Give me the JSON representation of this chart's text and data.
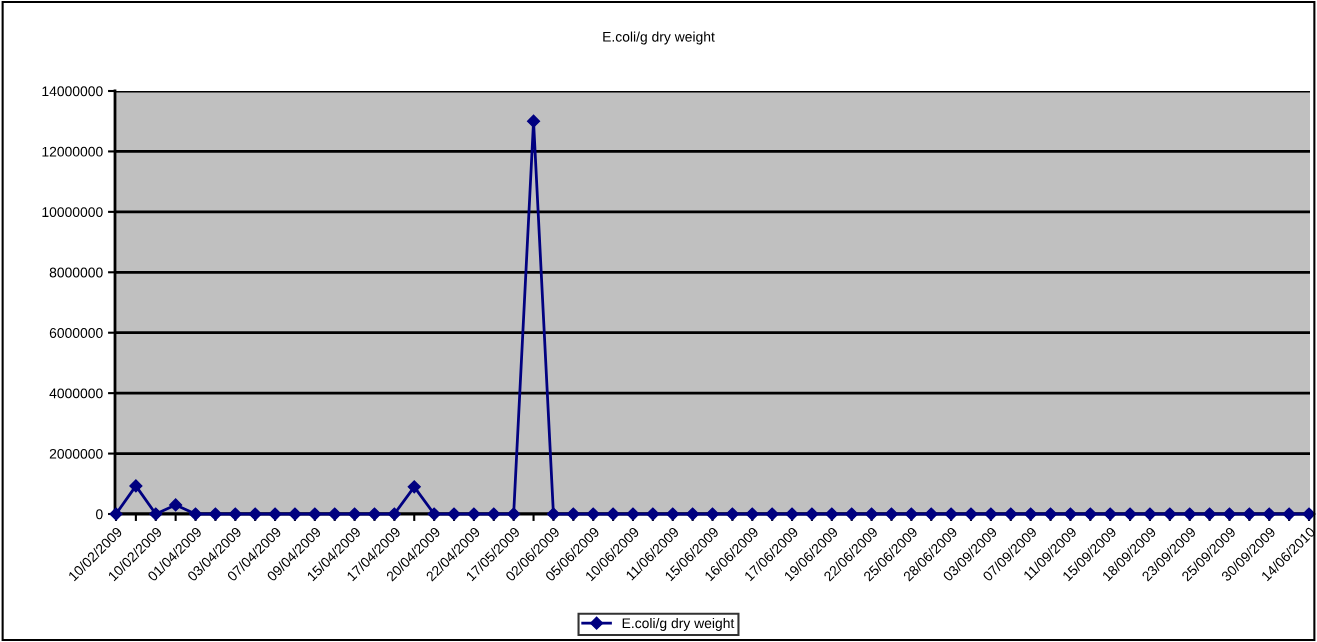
{
  "chart_data": {
    "type": "line",
    "title": "E.coli/g dry weight",
    "categories": [
      "10/02/2009",
      null,
      "10/02/2009",
      null,
      "01/04/2009",
      null,
      "03/04/2009",
      null,
      "07/04/2009",
      null,
      "09/04/2009",
      null,
      "15/04/2009",
      null,
      "17/04/2009",
      null,
      "20/04/2009",
      null,
      "22/04/2009",
      null,
      "17/05/2009",
      null,
      "02/06/2009",
      null,
      "05/06/2009",
      null,
      "10/06/2009",
      null,
      "11/06/2009",
      null,
      "15/06/2009",
      null,
      "16/06/2009",
      null,
      "17/06/2009",
      null,
      "19/06/2009",
      null,
      "22/06/2009",
      null,
      "25/06/2009",
      null,
      "28/06/2009",
      null,
      "03/09/2009",
      null,
      "07/09/2009",
      null,
      "11/09/2009",
      null,
      "15/09/2009",
      null,
      "18/09/2009",
      null,
      "23/09/2009",
      null,
      "25/09/2009",
      null,
      "30/09/2009",
      null,
      "14/06/2010"
    ],
    "series": [
      {
        "name": "E.coli/g dry weight",
        "color": "#000080",
        "values": [
          0,
          930000,
          0,
          300000,
          0,
          0,
          0,
          0,
          0,
          0,
          0,
          0,
          0,
          0,
          0,
          900000,
          0,
          0,
          0,
          0,
          0,
          13000000,
          0,
          0,
          0,
          0,
          0,
          0,
          0,
          0,
          0,
          0,
          0,
          0,
          0,
          0,
          0,
          0,
          0,
          0,
          0,
          0,
          0,
          0,
          0,
          0,
          0,
          0,
          0,
          0,
          0,
          0,
          0,
          0,
          0,
          0,
          0,
          0,
          0,
          0,
          0
        ]
      }
    ],
    "ylim": [
      0,
      14000000
    ],
    "yticks": [
      0,
      2000000,
      4000000,
      6000000,
      8000000,
      10000000,
      12000000,
      14000000
    ],
    "grid": "y",
    "legend": "bottom",
    "marker": "diamond",
    "line_style": "solid"
  }
}
